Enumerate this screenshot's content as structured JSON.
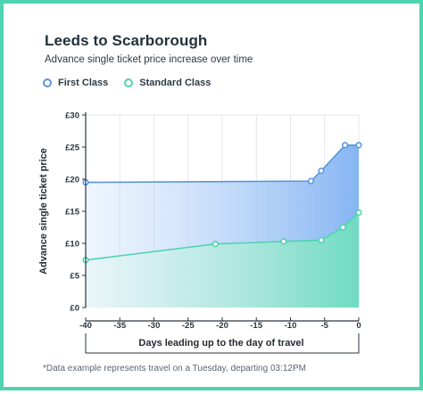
{
  "chart_data": {
    "type": "area",
    "title": "Leeds to Scarborough",
    "subtitle": "Advance single ticket price increase over time",
    "xlabel": "Days leading up to the day of travel",
    "ylabel": "Advance single ticket price",
    "xlim": [
      -40,
      0
    ],
    "ylim": [
      0,
      30
    ],
    "x_ticks": [
      -40,
      -35,
      -30,
      -25,
      -20,
      -15,
      -10,
      -5,
      0
    ],
    "x_tick_labels": [
      "-40",
      "-35",
      "-30",
      "-25",
      "-20",
      "-15",
      "-10",
      "-5",
      "0"
    ],
    "y_ticks": [
      0,
      5,
      10,
      15,
      20,
      25,
      30
    ],
    "y_tick_labels": [
      "£0",
      "£5",
      "£10",
      "£15",
      "£20",
      "£25",
      "£30"
    ],
    "grid": "vertical",
    "legend_position": "top-left",
    "series": [
      {
        "name": "First Class",
        "color": "#5b95dd",
        "x": [
          -40,
          -7,
          -5.5,
          -2,
          0
        ],
        "values": [
          19.5,
          19.7,
          21.3,
          25.3,
          25.3
        ]
      },
      {
        "name": "Standard Class",
        "color": "#4fd3b0",
        "x": [
          -40,
          -21,
          -11,
          -5.5,
          -2.3,
          0
        ],
        "values": [
          7.4,
          9.9,
          10.3,
          10.5,
          12.5,
          14.8
        ]
      }
    ],
    "footnote": "*Data example represents travel on a Tuesday, departing 03:12PM"
  }
}
